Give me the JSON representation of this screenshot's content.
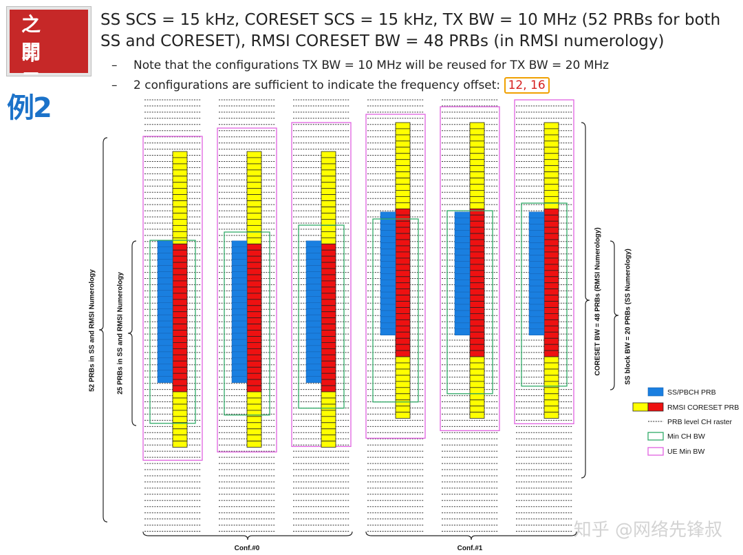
{
  "logo": {
    "line1": "之開",
    "line2": "印元"
  },
  "example_label": "例2",
  "header": {
    "title": "SS SCS = 15 kHz, CORESET SCS = 15 kHz, TX BW = 10 MHz (52 PRBs for both SS and CORESET), RMSI CORESET BW = 48 PRBs (in RMSI numerology)",
    "bullets": [
      {
        "dash": "–",
        "text": "Note that the configurations TX BW = 10 MHz will be reused for TX BW = 20 MHz"
      },
      {
        "dash": "–",
        "text": "2 configurations are sufficient to indicate the frequency offset:",
        "highlight": "12, 16"
      }
    ]
  },
  "labels": {
    "left_outer": "52 PRBs in SS and RMSI Numerology",
    "left_inner": "25 PRBs in SS and RMSI Numerology",
    "right_outer": "CORESET BW = 48 PRBs (RMSI Numerology)",
    "right_inner": "SS block BW = 20 PRBs (SS Numerology)",
    "conf0": "Conf.#0",
    "conf1": "Conf.#1"
  },
  "legend": [
    {
      "key": "ss",
      "label": "SS/PBCH PRB",
      "color": "#1a7fe0"
    },
    {
      "key": "coreset",
      "label": "RMSI CORESET PRB",
      "color": "#ee1111",
      "color2": "#ffff00"
    },
    {
      "key": "raster",
      "label": "PRB level CH raster"
    },
    {
      "key": "minch",
      "label": "Min CH BW",
      "color": "#2eaa66"
    },
    {
      "key": "uemin",
      "label": "UE Min BW",
      "color": "#e060e0"
    }
  ],
  "colors": {
    "ss": "#1a7fe0",
    "red": "#ee1111",
    "yellow": "#ffff00",
    "green": "#2eaa66",
    "magenta": "#e060e0"
  },
  "watermark": "知乎 @网络先锋叔",
  "diagram": {
    "columns": [
      {
        "group": 0,
        "offset_prbs": 12
      },
      {
        "group": 0,
        "offset_prbs": 12
      },
      {
        "group": 0,
        "offset_prbs": 12
      },
      {
        "group": 1,
        "offset_prbs": 16
      },
      {
        "group": 1,
        "offset_prbs": 16
      },
      {
        "group": 1,
        "offset_prbs": 16
      }
    ],
    "coreset_prbs": 48,
    "ss_prbs": 20,
    "red_prbs": 24,
    "ue_min_prbs": 52,
    "min_ch_prbs": 25
  }
}
